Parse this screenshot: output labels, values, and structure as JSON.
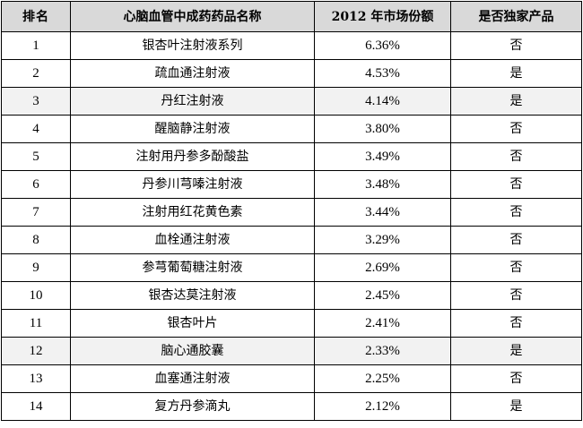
{
  "table": {
    "headers": {
      "rank": "排名",
      "name": "心脑血管中成药药品名称",
      "share": "2012 年市场份额",
      "exclusive": "是否独家产品"
    },
    "rows": [
      {
        "rank": "1",
        "name": "银杏叶注射液系列",
        "share": "6.36%",
        "exclusive": "否",
        "shaded": false
      },
      {
        "rank": "2",
        "name": "疏血通注射液",
        "share": "4.53%",
        "exclusive": "是",
        "shaded": false
      },
      {
        "rank": "3",
        "name": "丹红注射液",
        "share": "4.14%",
        "exclusive": "是",
        "shaded": true
      },
      {
        "rank": "4",
        "name": "醒脑静注射液",
        "share": "3.80%",
        "exclusive": "否",
        "shaded": false
      },
      {
        "rank": "5",
        "name": "注射用丹参多酚酸盐",
        "share": "3.49%",
        "exclusive": "否",
        "shaded": false
      },
      {
        "rank": "6",
        "name": "丹参川芎嗪注射液",
        "share": "3.48%",
        "exclusive": "否",
        "shaded": false
      },
      {
        "rank": "7",
        "name": "注射用红花黄色素",
        "share": "3.44%",
        "exclusive": "否",
        "shaded": false
      },
      {
        "rank": "8",
        "name": "血栓通注射液",
        "share": "3.29%",
        "exclusive": "否",
        "shaded": false
      },
      {
        "rank": "9",
        "name": "参芎葡萄糖注射液",
        "share": "2.69%",
        "exclusive": "否",
        "shaded": false
      },
      {
        "rank": "10",
        "name": "银杏达莫注射液",
        "share": "2.45%",
        "exclusive": "否",
        "shaded": false
      },
      {
        "rank": "11",
        "name": "银杏叶片",
        "share": "2.41%",
        "exclusive": "否",
        "shaded": false
      },
      {
        "rank": "12",
        "name": "脑心通胶囊",
        "share": "2.33%",
        "exclusive": "是",
        "shaded": true
      },
      {
        "rank": "13",
        "name": "血塞通注射液",
        "share": "2.25%",
        "exclusive": "否",
        "shaded": false
      },
      {
        "rank": "14",
        "name": "复方丹参滴丸",
        "share": "2.12%",
        "exclusive": "是",
        "shaded": false
      }
    ]
  },
  "colors": {
    "header_bg": "#d9d9d9",
    "shaded_row_bg": "#f2f2f2",
    "border": "#000000"
  }
}
